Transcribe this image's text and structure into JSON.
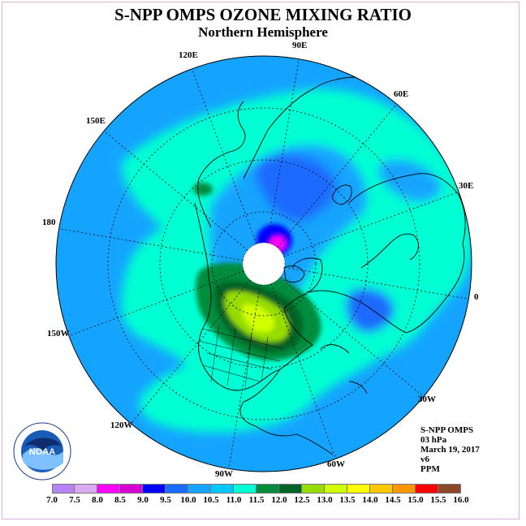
{
  "title": "S-NPP OMPS OZONE MIXING RATIO",
  "subtitle": "Northern Hemisphere",
  "longitude_labels": {
    "lon_90e": "90E",
    "lon_60e": "60E",
    "lon_30e": "30E",
    "lon_0": "0",
    "lon_30w": "30W",
    "lon_60w": "60W",
    "lon_90w": "90W",
    "lon_120w": "120W",
    "lon_150w": "150W",
    "lon_180": "180",
    "lon_150e": "150E",
    "lon_120e": "120E"
  },
  "info": {
    "instrument": "S-NPP OMPS",
    "level": "03 hPa",
    "date": "March 19, 2017",
    "version": "v6",
    "units": "PPM"
  },
  "logo_text": "NOAA",
  "colorbar": {
    "labels": [
      "7.0",
      "7.5",
      "8.0",
      "8.5",
      "9.0",
      "9.5",
      "10.0",
      "10.5",
      "11.0",
      "11.5",
      "12.0",
      "12.5",
      "13.0",
      "13.5",
      "14.0",
      "14.5",
      "15.0",
      "15.5",
      "16.0"
    ],
    "colors": [
      "#b683f5",
      "#d9a9f1",
      "#ff00ff",
      "#d400d4",
      "#0000ff",
      "#1a6bff",
      "#14a4ff",
      "#00c8ff",
      "#00ffd2",
      "#008c3c",
      "#006428",
      "#96dc00",
      "#d2ff00",
      "#ffff00",
      "#ffc800",
      "#ff9600",
      "#ff0000",
      "#8c4628"
    ]
  }
}
